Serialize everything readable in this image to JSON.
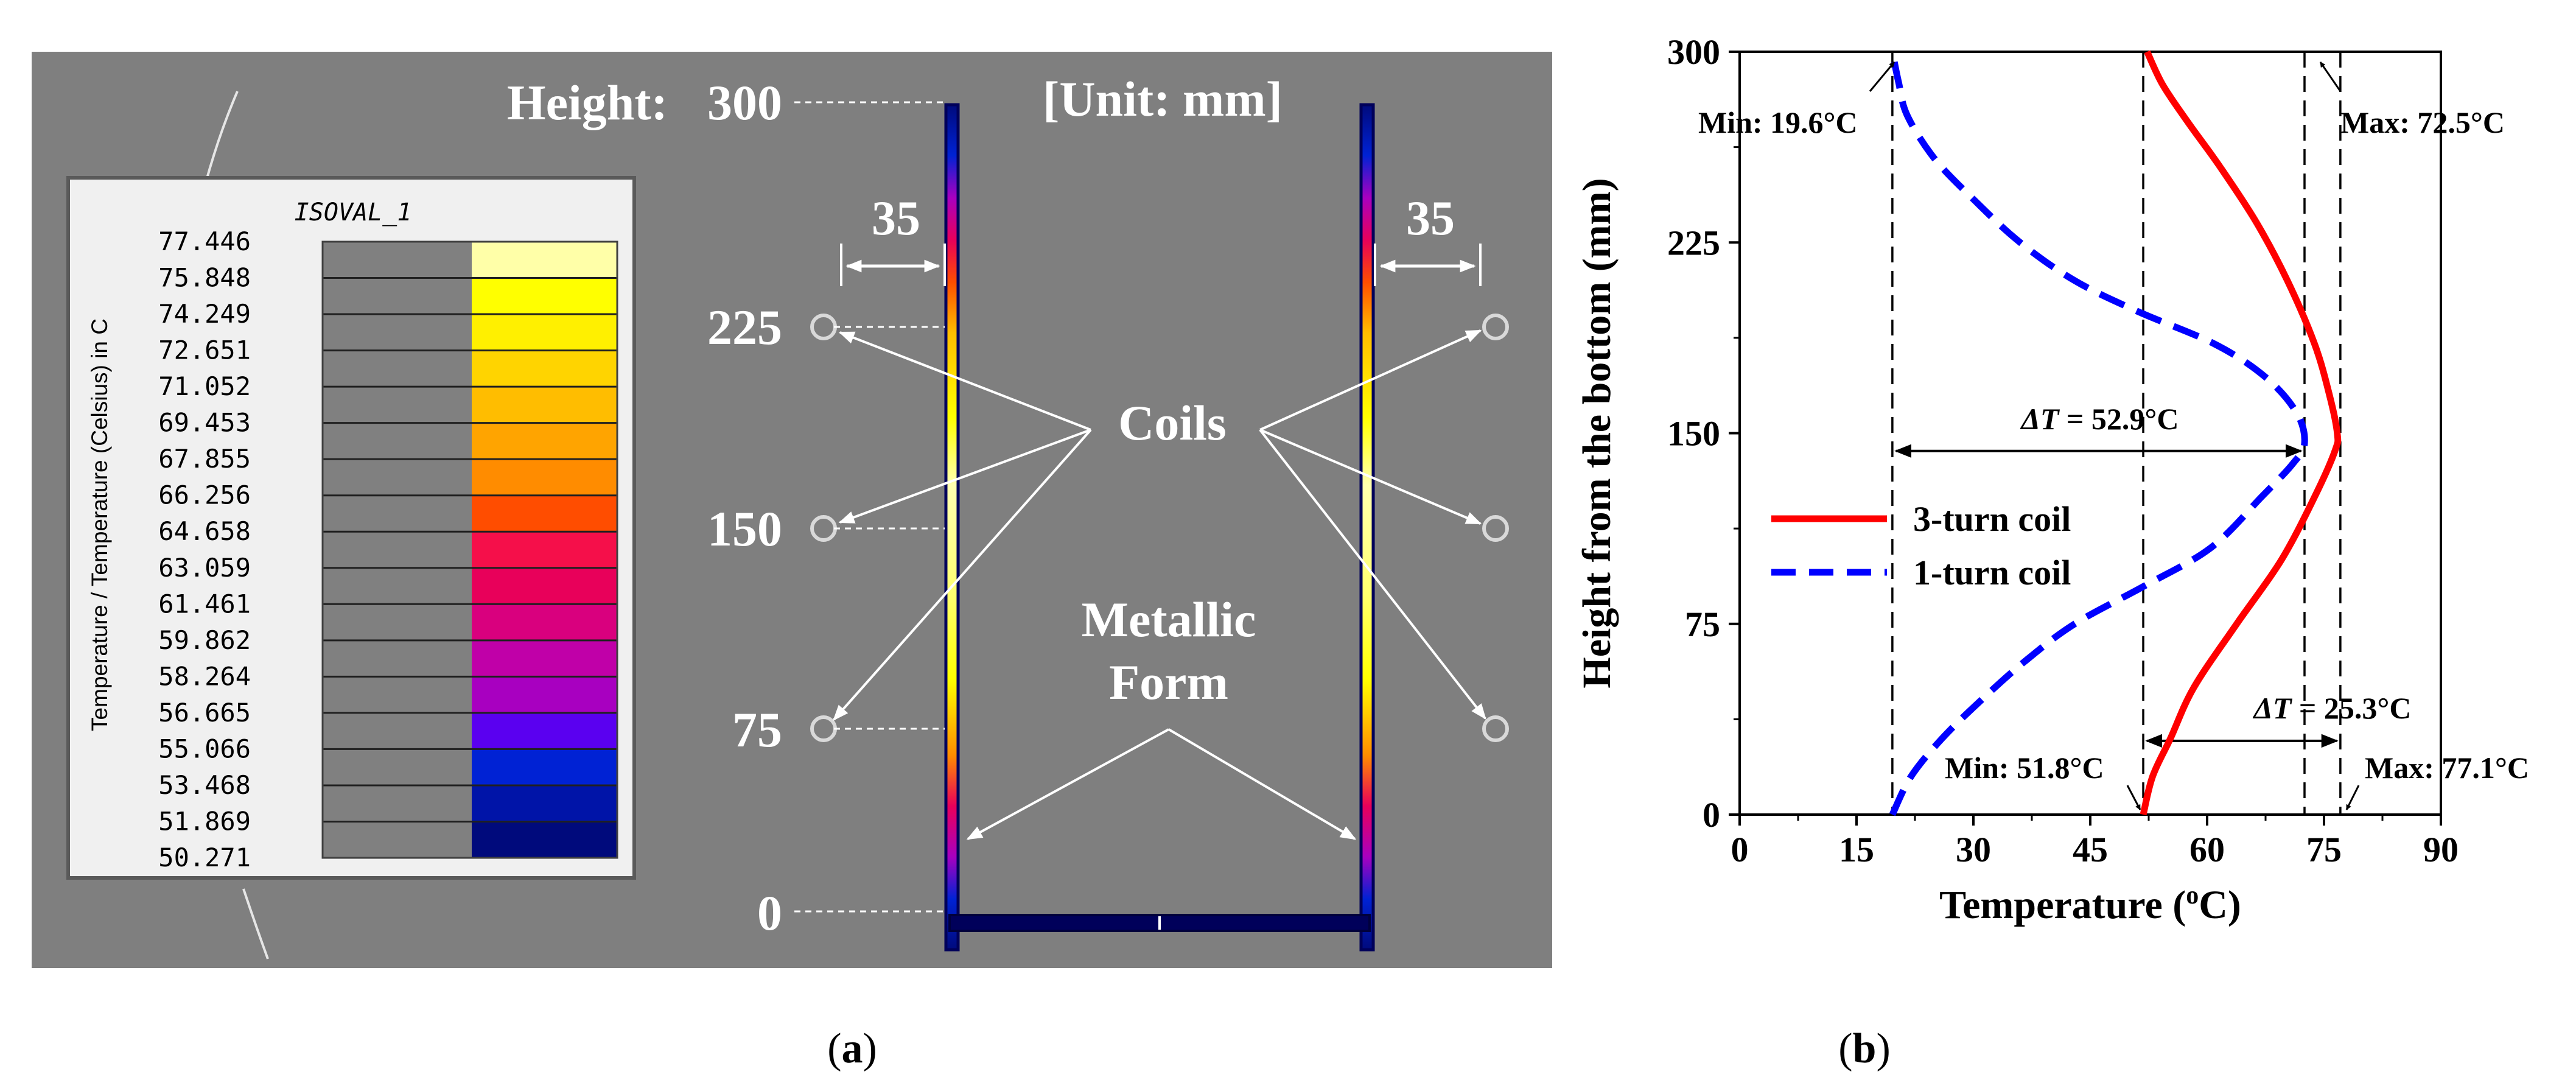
{
  "panel_a": {
    "label": "a",
    "height_label": "Height:",
    "unit_label": "[Unit: mm]",
    "height_ticks": [
      "300",
      "225",
      "150",
      "75",
      "0"
    ],
    "offset_left": "35",
    "offset_right": "35",
    "coils_label": "Coils",
    "form_label_line1": "Metallic",
    "form_label_line2": "Form",
    "legend_title": "ISOVAL_1",
    "legend_axis_title": "Temperature / Temperature (Celsius) in C",
    "legend_values": [
      "77.446",
      "75.848",
      "74.249",
      "72.651",
      "71.052",
      "69.453",
      "67.855",
      "66.256",
      "64.658",
      "63.059",
      "61.461",
      "59.862",
      "58.264",
      "56.665",
      "55.066",
      "53.468",
      "51.869",
      "50.271"
    ],
    "legend_colors": [
      "#ffffa8",
      "#ffff00",
      "#fff000",
      "#ffd400",
      "#ffbd00",
      "#ffa400",
      "#ff8c00",
      "#ff4d00",
      "#f50f4a",
      "#e8005a",
      "#d9007e",
      "#c000a8",
      "#a800c0",
      "#5a00f0",
      "#0022d4",
      "#0014a8",
      "#000a7c"
    ],
    "colors": {
      "background": "#7f7f7f",
      "form_stroke": "#00005a",
      "annotation": "#ffffff"
    }
  },
  "panel_b": {
    "label": "b",
    "annotations": {
      "min_1turn": "Min: 19.6°C",
      "max_3turn_top": "Max: 72.5°C",
      "min_3turn": "Min: 51.8°C",
      "max_3turn": "Max: 77.1°C",
      "delta_prefix": "ΔT",
      "delta_1turn": " = 52.9°C",
      "delta_3turn": " = 25.3°C"
    }
  },
  "chart_data": {
    "type": "line",
    "title": "",
    "xlabel": "Temperature (oC)",
    "xlabel_main": "Temperature (",
    "xlabel_sup": "o",
    "xlabel_end": "C)",
    "ylabel": "Height from the bottom (mm)",
    "xlim": [
      0,
      90
    ],
    "ylim": [
      0,
      300
    ],
    "xticks": [
      0,
      15,
      30,
      45,
      60,
      75,
      90
    ],
    "yticks": [
      0,
      75,
      150,
      225,
      300
    ],
    "legend_position": "center-left",
    "series": [
      {
        "name": "3-turn coil",
        "style": "solid",
        "color": "#ff0000",
        "points": [
          [
            51.8,
            0
          ],
          [
            53,
            15
          ],
          [
            55.3,
            30
          ],
          [
            58.3,
            50
          ],
          [
            63.8,
            75
          ],
          [
            69.5,
            100
          ],
          [
            73.8,
            125
          ],
          [
            76.4,
            143
          ],
          [
            76.7,
            150
          ],
          [
            75.7,
            165
          ],
          [
            73.8,
            185
          ],
          [
            70.3,
            210
          ],
          [
            66.3,
            233
          ],
          [
            61.6,
            255
          ],
          [
            57.6,
            272
          ],
          [
            54.3,
            287
          ],
          [
            52.3,
            300
          ]
        ]
      },
      {
        "name": "1-turn coil",
        "style": "dashed",
        "color": "#0000ff",
        "points": [
          [
            19.6,
            0
          ],
          [
            22,
            15
          ],
          [
            26,
            30
          ],
          [
            31,
            45
          ],
          [
            36.5,
            60
          ],
          [
            43,
            75
          ],
          [
            52,
            90
          ],
          [
            60.5,
            105
          ],
          [
            67,
            125
          ],
          [
            71,
            138
          ],
          [
            72.5,
            146
          ],
          [
            71.5,
            158
          ],
          [
            67.5,
            172
          ],
          [
            61,
            185
          ],
          [
            51,
            198
          ],
          [
            43,
            210
          ],
          [
            36,
            225
          ],
          [
            30,
            242
          ],
          [
            25,
            258
          ],
          [
            21.5,
            275
          ],
          [
            20.4,
            288
          ],
          [
            19.6,
            300
          ]
        ]
      }
    ]
  }
}
